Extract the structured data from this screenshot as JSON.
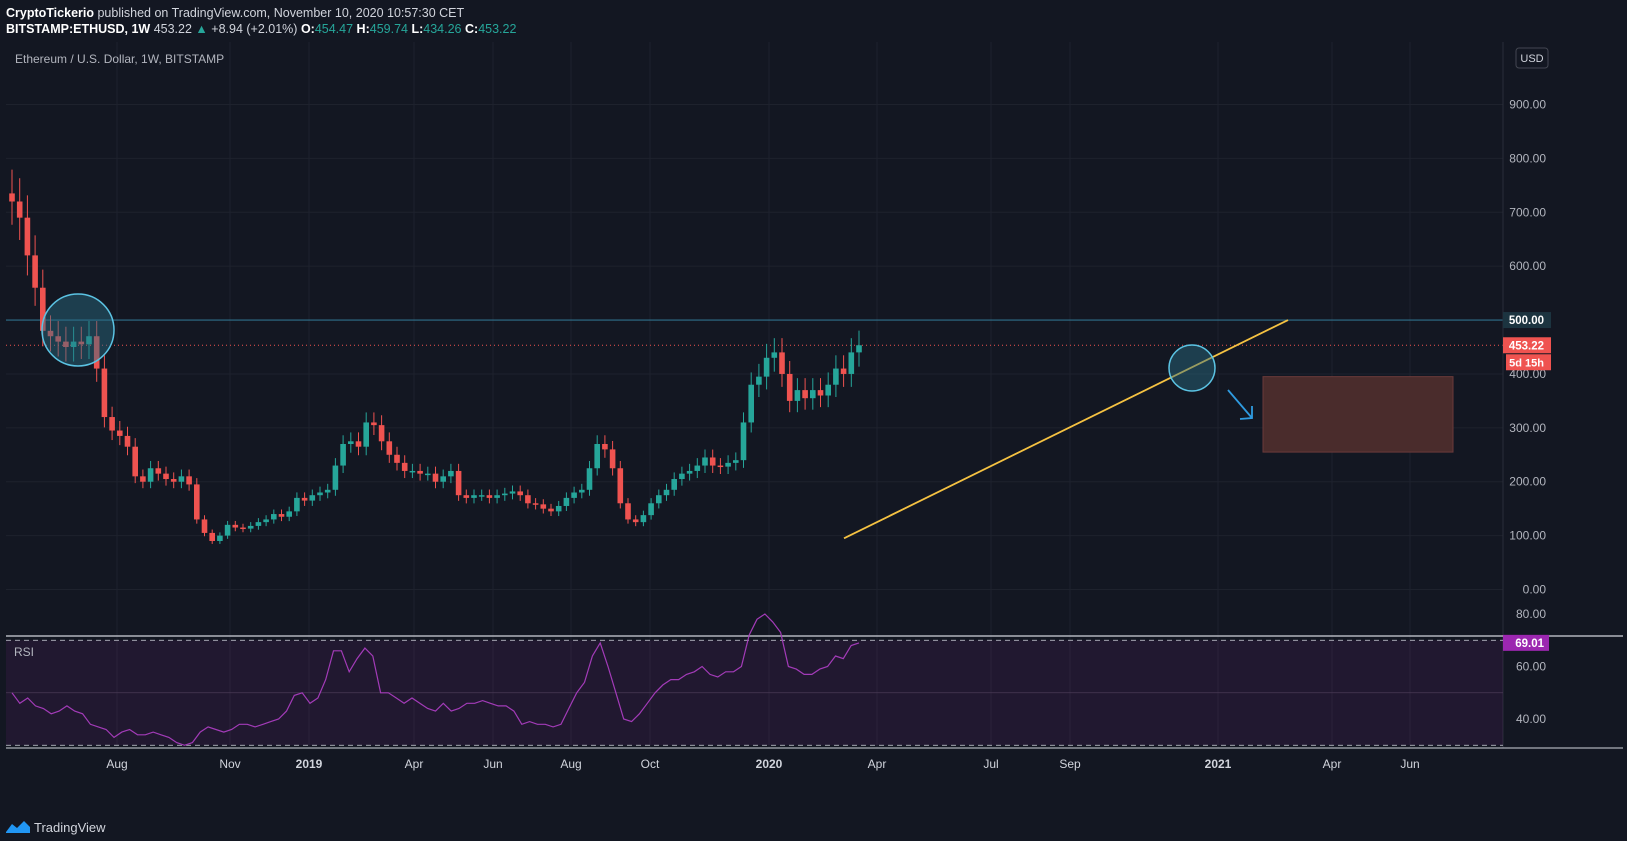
{
  "header": {
    "publisher": "CryptoTickerio",
    "published_text": "published on TradingView.com, November 10, 2020 10:57:30 CET",
    "symbol": "BITSTAMP:ETHUSD, 1W",
    "last_price": "453.22",
    "change": "+8.94 (+2.01%)",
    "open_label": "O:",
    "open": "454.47",
    "high_label": "H:",
    "high": "459.74",
    "low_label": "L:",
    "low": "434.26",
    "close_label": "C:",
    "close": "453.22"
  },
  "chart": {
    "legend_title": "Ethereum / U.S. Dollar, 1W, BITSTAMP",
    "currency": "USD",
    "price_badges": {
      "level": "500.00",
      "last": "453.22",
      "countdown": "5d 15h"
    },
    "rsi_label": "RSI",
    "rsi_badge": "69.01"
  },
  "footer": {
    "brand": "TradingView"
  },
  "colors": {
    "bg": "#131722",
    "up": "#26a69a",
    "down": "#ef5350",
    "trend": "#f5c242",
    "level": "#2f6f8a",
    "rsi": "#9c27b0",
    "zone": "#4a2c2c"
  },
  "chart_data": [
    {
      "type": "candlestick",
      "title": "Ethereum / U.S. Dollar, 1W, BITSTAMP",
      "ylim": [
        -80,
        1000
      ],
      "y_ticks": [
        "0.00",
        "100.00",
        "200.00",
        "300.00",
        "400.00",
        "500.00",
        "600.00",
        "700.00",
        "800.00",
        "900.00"
      ],
      "x_ticks": [
        "Aug",
        "Nov",
        "2019",
        "Apr",
        "Jun",
        "Aug",
        "Oct",
        "2020",
        "Apr",
        "Jul",
        "Sep",
        "2021",
        "Apr",
        "Jun"
      ],
      "grid": true,
      "weekly_close_estimates": [
        720,
        690,
        620,
        560,
        480,
        470,
        460,
        450,
        460,
        455,
        470,
        410,
        320,
        295,
        285,
        265,
        210,
        200,
        225,
        215,
        205,
        200,
        210,
        195,
        130,
        105,
        90,
        100,
        120,
        115,
        113,
        118,
        125,
        130,
        140,
        135,
        145,
        170,
        165,
        175,
        180,
        185,
        230,
        270,
        275,
        265,
        310,
        305,
        275,
        250,
        235,
        220,
        220,
        215,
        215,
        200,
        210,
        220,
        175,
        170,
        175,
        175,
        170,
        175,
        178,
        182,
        175,
        160,
        158,
        150,
        145,
        155,
        170,
        180,
        185,
        225,
        270,
        260,
        225,
        160,
        130,
        125,
        138,
        160,
        175,
        185,
        205,
        215,
        220,
        230,
        245,
        230,
        228,
        235,
        240,
        310,
        380,
        395,
        430,
        440,
        400,
        350,
        370,
        355,
        370,
        360,
        380,
        410,
        400,
        440,
        453.22
      ],
      "horizontal_level": 500,
      "trendline": {
        "from": [
          "2020-03",
          95
        ],
        "to": [
          "2021-02",
          500
        ]
      },
      "target_zone": {
        "price_range": [
          255,
          395
        ],
        "time_range": [
          "2021-01",
          "2021-06"
        ]
      },
      "circles": [
        "2018-07",
        "2020-12"
      ]
    },
    {
      "type": "line",
      "title": "RSI",
      "ylim": [
        30,
        85
      ],
      "y_ticks": [
        "40.00",
        "60.00",
        "80.00"
      ],
      "bands": [
        30,
        70
      ],
      "weekly_values": [
        50,
        46,
        48,
        45,
        44,
        42,
        43,
        45,
        43,
        42,
        38,
        37,
        36,
        33,
        35,
        36,
        34,
        34,
        35,
        34,
        33,
        31,
        30,
        31,
        35,
        37,
        36,
        35,
        36,
        38,
        38,
        37,
        38,
        39,
        40,
        43,
        49,
        50,
        46,
        48,
        55,
        66,
        66,
        58,
        63,
        67,
        64,
        50,
        50,
        48,
        46,
        48,
        46,
        44,
        43,
        46,
        43,
        44,
        46,
        46,
        47,
        46,
        45,
        45,
        43,
        38,
        39,
        38,
        38,
        37,
        38,
        44,
        50,
        54,
        64,
        69,
        60,
        50,
        40,
        39,
        42,
        46,
        50,
        53,
        55,
        55,
        57,
        58,
        60,
        57,
        56,
        58,
        58,
        60,
        72,
        78,
        80,
        77,
        73,
        60,
        59,
        57,
        57,
        59,
        60,
        64,
        63,
        68,
        69
      ]
    }
  ]
}
